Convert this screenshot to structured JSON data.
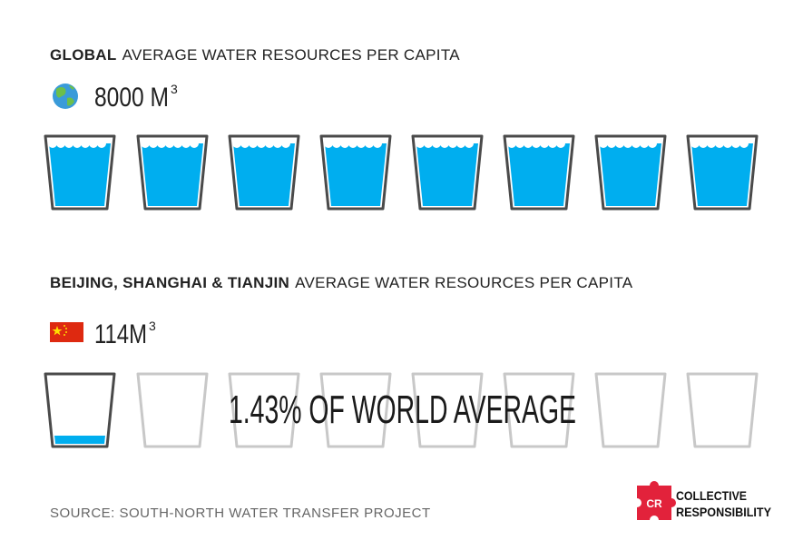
{
  "global": {
    "label_bold": "GLOBAL",
    "label": "AVERAGE WATER RESOURCES PER CAPITA",
    "amount": "8000 M",
    "unit_exponent": "3"
  },
  "china": {
    "label_bold": "BEIJING, SHANGHAI & TIANJIN",
    "label": "AVERAGE WATER RESOURCES PER CAPITA",
    "amount": "114M",
    "unit_exponent": "3"
  },
  "comparison": "1.43% OF WORLD AVERAGE",
  "source": "SOURCE: SOUTH-NORTH WATER TRANSFER PROJECT",
  "logo": {
    "mark": "CR",
    "lines": [
      "COLLECTIVE",
      "RESPONSIBILITY"
    ]
  }
}
